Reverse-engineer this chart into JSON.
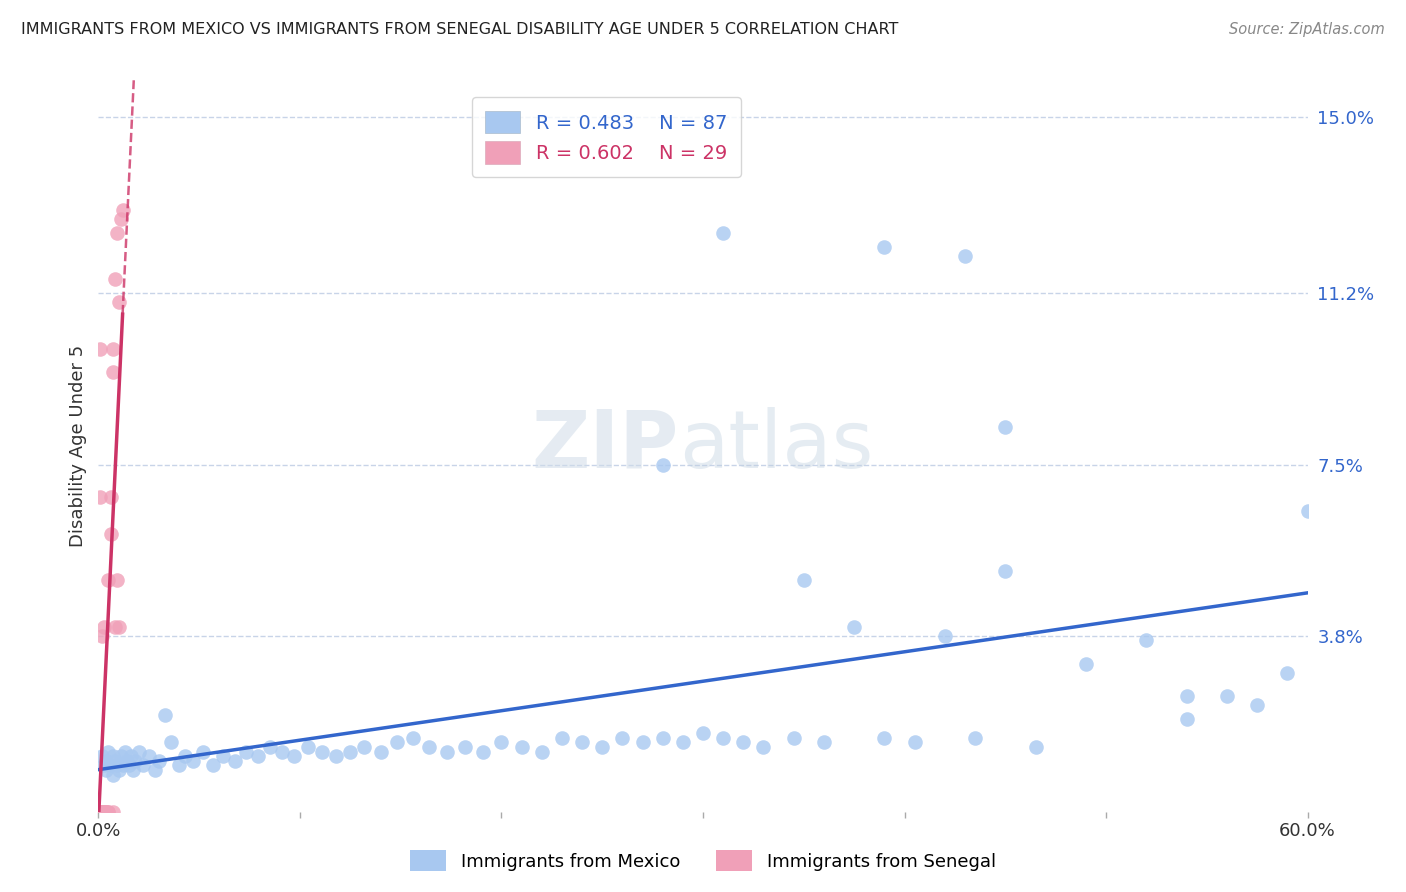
{
  "title": "IMMIGRANTS FROM MEXICO VS IMMIGRANTS FROM SENEGAL DISABILITY AGE UNDER 5 CORRELATION CHART",
  "source": "Source: ZipAtlas.com",
  "ylabel": "Disability Age Under 5",
  "xlim": [
    0,
    0.6
  ],
  "ylim": [
    0,
    0.158
  ],
  "yticks": [
    0.0,
    0.038,
    0.075,
    0.112,
    0.15
  ],
  "ytick_labels": [
    "",
    "3.8%",
    "7.5%",
    "11.2%",
    "15.0%"
  ],
  "xticks": [
    0.0,
    0.1,
    0.2,
    0.3,
    0.4,
    0.5,
    0.6
  ],
  "xtick_labels": [
    "0.0%",
    "",
    "",
    "",
    "",
    "",
    "60.0%"
  ],
  "mexico_color": "#a8c8f0",
  "senegal_color": "#f0a0b8",
  "regression_mexico_color": "#3366cc",
  "regression_senegal_color": "#cc3366",
  "mexico_R": 0.483,
  "mexico_N": 87,
  "senegal_R": 0.602,
  "senegal_N": 29,
  "mexico_scatter_x": [
    0.002,
    0.003,
    0.004,
    0.004,
    0.005,
    0.006,
    0.007,
    0.007,
    0.008,
    0.009,
    0.01,
    0.011,
    0.012,
    0.013,
    0.014,
    0.015,
    0.016,
    0.017,
    0.018,
    0.02,
    0.022,
    0.025,
    0.028,
    0.03,
    0.033,
    0.036,
    0.04,
    0.043,
    0.047,
    0.052,
    0.057,
    0.062,
    0.068,
    0.073,
    0.079,
    0.085,
    0.091,
    0.097,
    0.104,
    0.111,
    0.118,
    0.125,
    0.132,
    0.14,
    0.148,
    0.156,
    0.164,
    0.173,
    0.182,
    0.191,
    0.2,
    0.21,
    0.22,
    0.23,
    0.24,
    0.25,
    0.26,
    0.27,
    0.28,
    0.29,
    0.3,
    0.31,
    0.32,
    0.33,
    0.345,
    0.36,
    0.375,
    0.39,
    0.405,
    0.42,
    0.435,
    0.45,
    0.465,
    0.35,
    0.28,
    0.43,
    0.39,
    0.31,
    0.49,
    0.52,
    0.45,
    0.54,
    0.54,
    0.56,
    0.575,
    0.59,
    0.6
  ],
  "mexico_scatter_y": [
    0.012,
    0.01,
    0.009,
    0.011,
    0.013,
    0.01,
    0.012,
    0.008,
    0.011,
    0.01,
    0.009,
    0.012,
    0.01,
    0.013,
    0.011,
    0.01,
    0.012,
    0.009,
    0.011,
    0.013,
    0.01,
    0.012,
    0.009,
    0.011,
    0.021,
    0.015,
    0.01,
    0.012,
    0.011,
    0.013,
    0.01,
    0.012,
    0.011,
    0.013,
    0.012,
    0.014,
    0.013,
    0.012,
    0.014,
    0.013,
    0.012,
    0.013,
    0.014,
    0.013,
    0.015,
    0.016,
    0.014,
    0.013,
    0.014,
    0.013,
    0.015,
    0.014,
    0.013,
    0.016,
    0.015,
    0.014,
    0.016,
    0.015,
    0.016,
    0.015,
    0.017,
    0.016,
    0.015,
    0.014,
    0.016,
    0.015,
    0.04,
    0.016,
    0.015,
    0.038,
    0.016,
    0.083,
    0.014,
    0.05,
    0.075,
    0.12,
    0.122,
    0.125,
    0.032,
    0.037,
    0.052,
    0.025,
    0.02,
    0.025,
    0.023,
    0.03,
    0.065
  ],
  "senegal_scatter_x": [
    0.001,
    0.001,
    0.001,
    0.001,
    0.002,
    0.002,
    0.002,
    0.003,
    0.003,
    0.003,
    0.003,
    0.004,
    0.004,
    0.005,
    0.005,
    0.005,
    0.006,
    0.006,
    0.007,
    0.007,
    0.007,
    0.008,
    0.008,
    0.009,
    0.009,
    0.01,
    0.01,
    0.011,
    0.012
  ],
  "senegal_scatter_y": [
    0.0,
    0.0,
    0.068,
    0.1,
    0.0,
    0.0,
    0.038,
    0.0,
    0.0,
    0.0,
    0.04,
    0.0,
    0.0,
    0.0,
    0.0,
    0.05,
    0.06,
    0.068,
    0.0,
    0.095,
    0.1,
    0.115,
    0.04,
    0.125,
    0.05,
    0.11,
    0.04,
    0.128,
    0.13
  ],
  "background_color": "#ffffff",
  "grid_color": "#c8d4e8",
  "watermark_color": "#dce8f0"
}
